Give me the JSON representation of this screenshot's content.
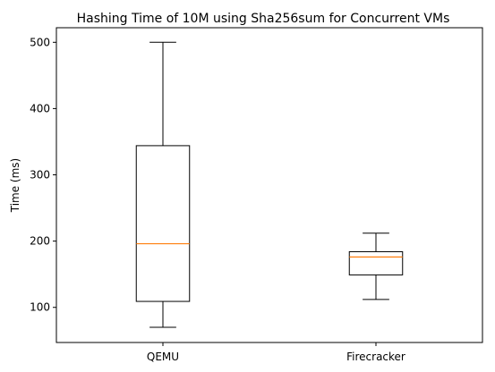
{
  "chart_data": {
    "type": "box",
    "title": "Hashing Time of 10M using Sha256sum for Concurrent VMs",
    "xlabel": "",
    "ylabel": "Time (ms)",
    "ylim": [
      47,
      522
    ],
    "yticks": [
      100,
      200,
      300,
      400,
      500
    ],
    "categories": [
      "QEMU",
      "Firecracker"
    ],
    "boxes": [
      {
        "whisker_low": 70,
        "q1": 109,
        "median": 196,
        "q3": 344,
        "whisker_high": 500
      },
      {
        "whisker_low": 112,
        "q1": 149,
        "median": 176,
        "q3": 184,
        "whisker_high": 212
      }
    ],
    "median_color": "#ff7f0e",
    "box_color": "#000000",
    "grid": false,
    "legend": "none"
  }
}
